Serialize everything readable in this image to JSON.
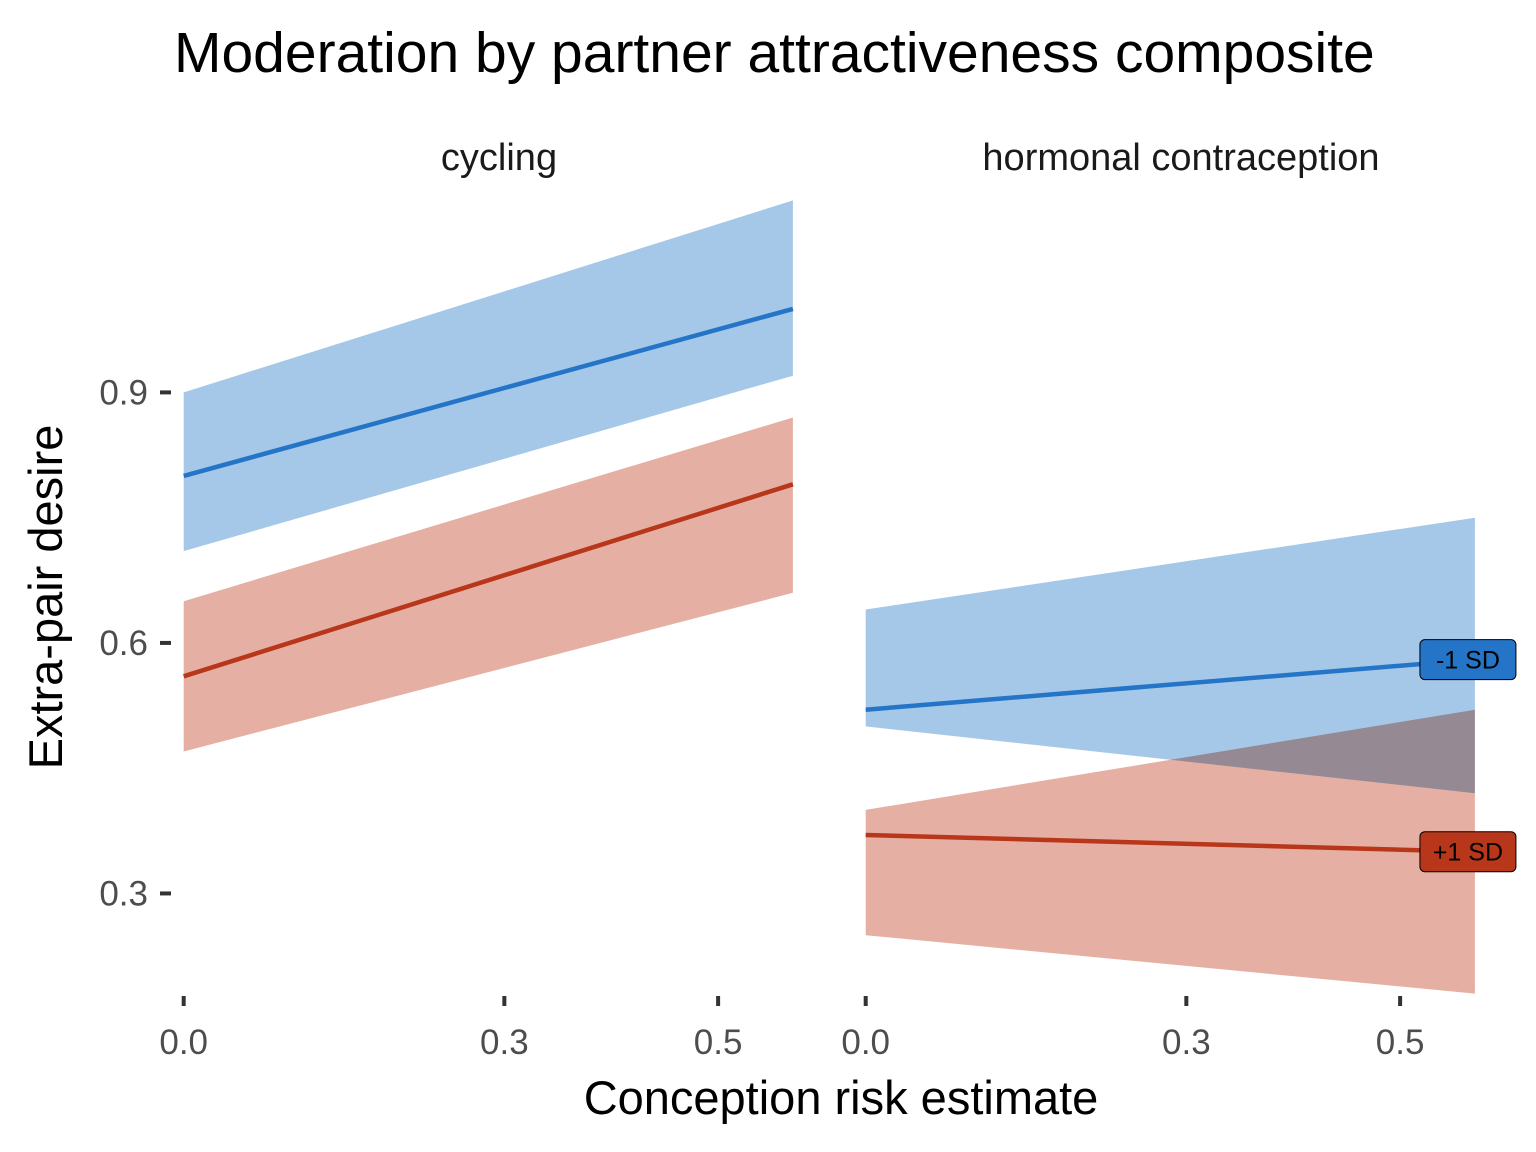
{
  "chart_data": {
    "type": "line",
    "title": "Moderation by partner attractiveness composite",
    "xlabel": "Conception risk estimate",
    "ylabel": "Extra-pair desire",
    "facet_order": [
      "cycling",
      "hormonal contraception"
    ],
    "xlim": [
      -0.01,
      0.6
    ],
    "ylim": [
      0.17,
      1.14
    ],
    "x_ticks": [
      0.0,
      0.3,
      0.5
    ],
    "x_tick_labels": [
      "0.0",
      "0.3",
      "0.5"
    ],
    "y_ticks": [
      0.3,
      0.6,
      0.9
    ],
    "y_tick_labels": [
      "0.3",
      "0.6",
      "0.9"
    ],
    "grid": false,
    "legend": "none; direct line labels at right end of second panel",
    "series_styles": [
      {
        "name": "-1 SD",
        "color": "#2474C7",
        "band_color": "#A6C8E8"
      },
      {
        "name": "+1 SD",
        "color": "#B8361A",
        "band_color": "#E5B0A3"
      }
    ],
    "facets": [
      {
        "label": "cycling",
        "series": [
          {
            "name": "-1 SD",
            "x": [
              0.0,
              0.57
            ],
            "y": [
              0.8,
              1.0
            ],
            "lower": [
              0.71,
              0.92
            ],
            "upper": [
              0.9,
              1.13
            ]
          },
          {
            "name": "+1 SD",
            "x": [
              0.0,
              0.57
            ],
            "y": [
              0.56,
              0.79
            ],
            "lower": [
              0.47,
              0.66
            ],
            "upper": [
              0.65,
              0.87
            ]
          }
        ]
      },
      {
        "label": "hormonal contraception",
        "series": [
          {
            "name": "-1 SD",
            "x": [
              0.0,
              0.57
            ],
            "y": [
              0.52,
              0.58
            ],
            "lower": [
              0.5,
              0.42
            ],
            "upper": [
              0.64,
              0.75
            ]
          },
          {
            "name": "+1 SD",
            "x": [
              0.0,
              0.57
            ],
            "y": [
              0.37,
              0.35
            ],
            "lower": [
              0.25,
              0.18
            ],
            "upper": [
              0.4,
              0.52
            ]
          }
        ]
      }
    ]
  }
}
